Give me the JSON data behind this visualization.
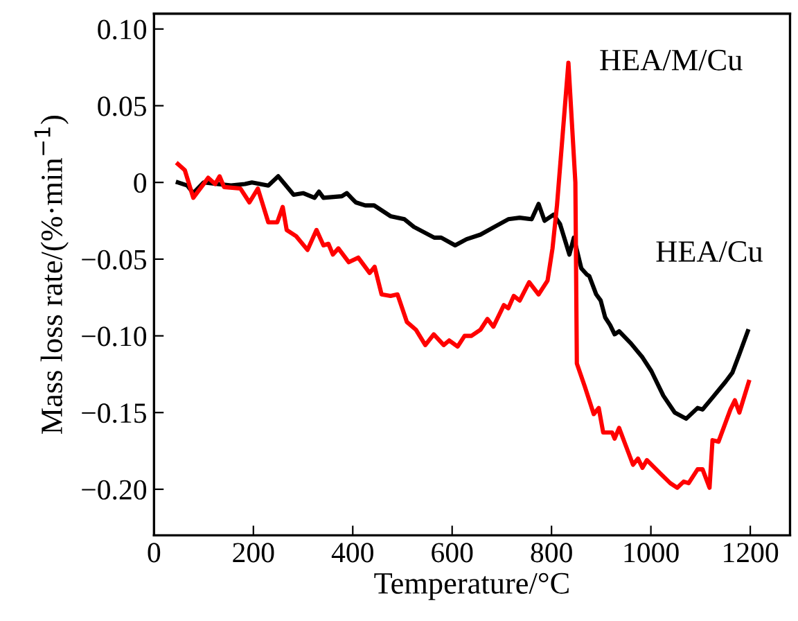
{
  "chart_data": {
    "type": "line",
    "xlabel": "Temperature/°C",
    "ylabel": "Mass loss rate/(%·min$^{−1}$)",
    "xlim": [
      0,
      1280
    ],
    "xticks": [
      0,
      200,
      400,
      600,
      800,
      1000,
      1200
    ],
    "ylim": [
      -0.23,
      0.11
    ],
    "yticks": [
      {
        "value": 0.1,
        "label": "0.10"
      },
      {
        "value": 0.05,
        "label": "0.05"
      },
      {
        "value": 0,
        "label": "0"
      },
      {
        "value": -0.05,
        "label": "−0.05"
      },
      {
        "value": -0.1,
        "label": "−0.10"
      },
      {
        "value": -0.15,
        "label": "−0.15"
      },
      {
        "value": -0.2,
        "label": "−0.20"
      }
    ],
    "grid": false,
    "legend": false,
    "marker": "none",
    "line_style": "solid",
    "series": [
      {
        "name": "HEA/Cu",
        "color": "#000000",
        "x": [
          48,
          67,
          79,
          100,
          155,
          183,
          197,
          230,
          250,
          281,
          300,
          323,
          332,
          341,
          378,
          388,
          406,
          425,
          443,
          476,
          504,
          523,
          564,
          578,
          606,
          629,
          657,
          685,
          713,
          736,
          760,
          774,
          786,
          804,
          817,
          836,
          845,
          860,
          871,
          876,
          890,
          899,
          908,
          918,
          927,
          936,
          960,
          983,
          1001,
          1025,
          1048,
          1071,
          1094,
          1104,
          1122,
          1150,
          1164,
          1178,
          1195
        ],
        "values": [
          0.0,
          -0.002,
          -0.007,
          0.0,
          -0.002,
          -0.001,
          0.0,
          -0.002,
          0.004,
          -0.008,
          -0.007,
          -0.01,
          -0.006,
          -0.01,
          -0.009,
          -0.007,
          -0.013,
          -0.015,
          -0.015,
          -0.022,
          -0.024,
          -0.029,
          -0.036,
          -0.036,
          -0.041,
          -0.037,
          -0.034,
          -0.029,
          -0.024,
          -0.023,
          -0.024,
          -0.014,
          -0.025,
          -0.021,
          -0.027,
          -0.047,
          -0.036,
          -0.056,
          -0.06,
          -0.061,
          -0.073,
          -0.077,
          -0.088,
          -0.093,
          -0.099,
          -0.097,
          -0.105,
          -0.114,
          -0.123,
          -0.139,
          -0.15,
          -0.154,
          -0.147,
          -0.148,
          -0.141,
          -0.13,
          -0.124,
          -0.112,
          -0.097
        ]
      },
      {
        "name": "HEA/M/Cu",
        "color": "#ff0000",
        "x": [
          48,
          62,
          79,
          100,
          109,
          123,
          132,
          141,
          174,
          192,
          209,
          230,
          248,
          259,
          267,
          286,
          309,
          327,
          341,
          351,
          360,
          371,
          392,
          411,
          434,
          444,
          458,
          476,
          490,
          509,
          527,
          546,
          563,
          583,
          594,
          611,
          625,
          639,
          657,
          671,
          683,
          704,
          713,
          724,
          736,
          755,
          774,
          792,
          802,
          811,
          834,
          848,
          851,
          867,
          885,
          895,
          904,
          922,
          927,
          936,
          950,
          964,
          974,
          983,
          992,
          1020,
          1039,
          1053,
          1066,
          1076,
          1094,
          1104,
          1118,
          1124,
          1136,
          1160,
          1169,
          1178,
          1197
        ],
        "values": [
          0.012,
          0.008,
          -0.01,
          -0.001,
          0.003,
          -0.001,
          0.004,
          -0.003,
          -0.004,
          -0.013,
          -0.004,
          -0.026,
          -0.026,
          -0.016,
          -0.031,
          -0.035,
          -0.044,
          -0.031,
          -0.041,
          -0.04,
          -0.047,
          -0.043,
          -0.052,
          -0.049,
          -0.059,
          -0.055,
          -0.073,
          -0.074,
          -0.073,
          -0.091,
          -0.096,
          -0.106,
          -0.099,
          -0.106,
          -0.103,
          -0.107,
          -0.1,
          -0.1,
          -0.096,
          -0.089,
          -0.094,
          -0.08,
          -0.082,
          -0.074,
          -0.077,
          -0.065,
          -0.073,
          -0.064,
          -0.043,
          -0.015,
          0.078,
          0.0,
          -0.118,
          -0.133,
          -0.151,
          -0.147,
          -0.163,
          -0.163,
          -0.167,
          -0.16,
          -0.172,
          -0.184,
          -0.18,
          -0.186,
          -0.181,
          -0.19,
          -0.196,
          -0.199,
          -0.195,
          -0.196,
          -0.187,
          -0.187,
          -0.199,
          -0.168,
          -0.169,
          -0.148,
          -0.142,
          -0.15,
          -0.13
        ]
      }
    ]
  }
}
